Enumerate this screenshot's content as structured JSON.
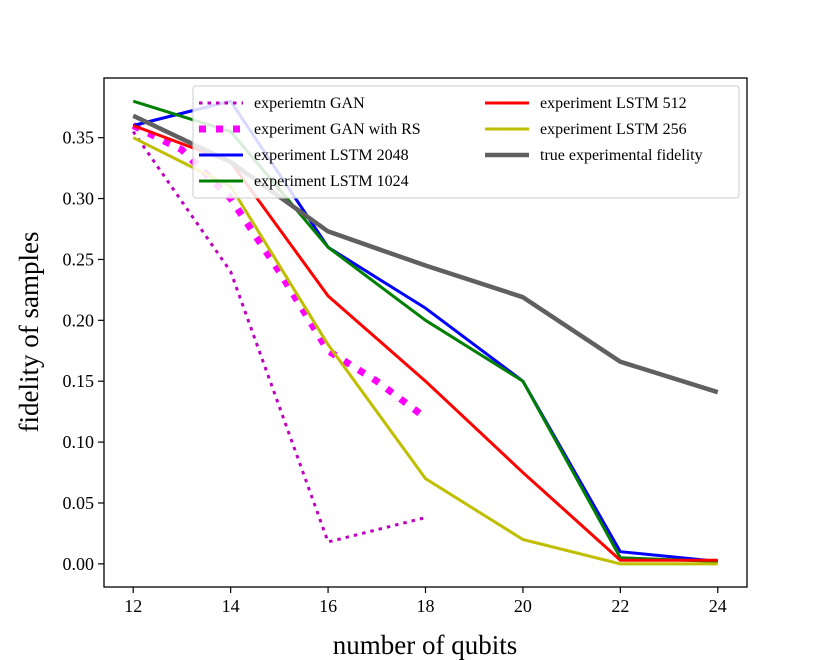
{
  "chart_data": {
    "type": "line",
    "title": "",
    "xlabel": "number of qubits",
    "ylabel": "fidelity of samples",
    "xlim": [
      11.4,
      24.6
    ],
    "ylim": [
      -0.019,
      0.399
    ],
    "x_ticks": [
      12,
      14,
      16,
      18,
      20,
      22,
      24
    ],
    "y_ticks": [
      0.0,
      0.05,
      0.1,
      0.15,
      0.2,
      0.25,
      0.3,
      0.35
    ],
    "y_tick_labels": [
      "0.00",
      "0.05",
      "0.10",
      "0.15",
      "0.20",
      "0.25",
      "0.30",
      "0.35"
    ],
    "grid": false,
    "legend_position": "top-right",
    "series": [
      {
        "name": "experiemtn GAN",
        "color": "#bf00bf",
        "style": "dotted",
        "x": [
          12,
          14,
          16,
          18
        ],
        "values": [
          0.355,
          0.24,
          0.018,
          0.038
        ]
      },
      {
        "name": "experiment GAN with RS",
        "color": "#ff00ff",
        "style": "dotted-thick",
        "x": [
          12,
          13,
          14,
          15,
          16,
          17,
          18
        ],
        "values": [
          0.36,
          0.34,
          0.3,
          0.24,
          0.175,
          0.15,
          0.12
        ]
      },
      {
        "name": "experiment LSTM 2048",
        "color": "#0000ff",
        "style": "solid",
        "x": [
          12,
          14,
          16,
          18,
          20,
          22,
          24
        ],
        "values": [
          0.36,
          0.38,
          0.26,
          0.21,
          0.15,
          0.01,
          0.002
        ]
      },
      {
        "name": "experiment LSTM 1024",
        "color": "#008000",
        "style": "solid",
        "x": [
          12,
          14,
          16,
          18,
          20,
          22,
          24
        ],
        "values": [
          0.38,
          0.355,
          0.26,
          0.2,
          0.15,
          0.005,
          0.002
        ]
      },
      {
        "name": "experiment LSTM 512",
        "color": "#ff0000",
        "style": "solid",
        "x": [
          12,
          14,
          16,
          18,
          20,
          22,
          24
        ],
        "values": [
          0.36,
          0.33,
          0.22,
          0.15,
          0.075,
          0.003,
          0.003
        ]
      },
      {
        "name": "experiment LSTM 256",
        "color": "#bfbf00",
        "style": "solid",
        "x": [
          12,
          14,
          16,
          18,
          20,
          22,
          24
        ],
        "values": [
          0.35,
          0.31,
          0.18,
          0.07,
          0.02,
          0.0,
          0.0
        ]
      },
      {
        "name": "true experimental fidelity",
        "color": "#606060",
        "style": "solid-thick",
        "x": [
          12,
          14,
          16,
          18,
          20,
          22,
          24
        ],
        "values": [
          0.368,
          0.33,
          0.273,
          0.245,
          0.219,
          0.166,
          0.141
        ]
      }
    ]
  }
}
